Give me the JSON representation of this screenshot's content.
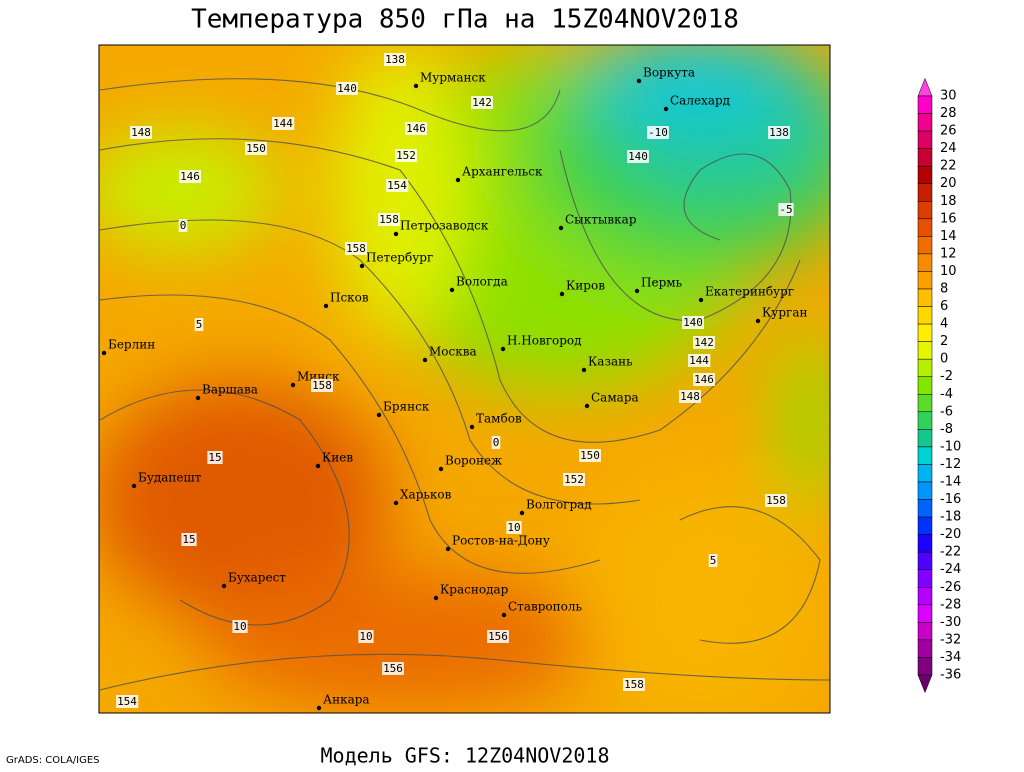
{
  "header": {
    "title": "Температура 850 гПа на 15Z04NOV2018"
  },
  "footer": {
    "model": "Модель GFS: 12Z04NOV2018",
    "credit": "GrADS: COLA/IGES"
  },
  "cities": [
    "Мурманск",
    "Воркута",
    "Салехард",
    "Архангельск",
    "Сыктывкар",
    "Петрозаводск",
    "Петербург",
    "Вологда",
    "Киров",
    "Пермь",
    "Екатеринбург",
    "Курган",
    "Псков",
    "Москва",
    "Н.Новгород",
    "Казань",
    "Берлин",
    "Варшава",
    "Минск",
    "Брянск",
    "Тамбов",
    "Самара",
    "Киев",
    "Воронеж",
    "Харьков",
    "Волгоград",
    "Будапешт",
    "Ростов-на-Дону",
    "Бухарест",
    "Краснодар",
    "Ставрополь",
    "Анкара"
  ],
  "contour_labels": [
    "138",
    "140",
    "142",
    "144",
    "146",
    "148",
    "150",
    "152",
    "154",
    "158",
    "140",
    "138",
    "-10",
    "-5",
    "140",
    "142",
    "144",
    "146",
    "148",
    "150",
    "152",
    "156",
    "158",
    "158",
    "158",
    "156",
    "154",
    "158",
    "146",
    "0",
    "5",
    "10",
    "15",
    "10",
    "10",
    "15",
    "5",
    "0"
  ],
  "colorbar": {
    "labels": [
      30,
      28,
      26,
      24,
      22,
      20,
      18,
      16,
      14,
      12,
      10,
      8,
      6,
      4,
      2,
      0,
      -2,
      -4,
      -6,
      -8,
      -10,
      -12,
      -14,
      -16,
      -18,
      -20,
      -22,
      -24,
      -26,
      -28,
      -30,
      -32,
      -34,
      -36
    ],
    "colors": [
      "#ff44dd",
      "#ff00c8",
      "#f0008c",
      "#dc0064",
      "#c80032",
      "#b40000",
      "#c81e00",
      "#dc3c00",
      "#e65000",
      "#f06e00",
      "#f58c00",
      "#faa000",
      "#ffbe00",
      "#ffd700",
      "#ffee00",
      "#e6f500",
      "#b4f000",
      "#82e600",
      "#5adc28",
      "#32d25a",
      "#14c88c",
      "#00d2d2",
      "#00b4f0",
      "#0096ff",
      "#0064ff",
      "#0032ff",
      "#1e00ff",
      "#5000ff",
      "#8200ff",
      "#b400ff",
      "#dc00ff",
      "#c800c8",
      "#a000a0",
      "#800080",
      "#6a006a"
    ]
  }
}
